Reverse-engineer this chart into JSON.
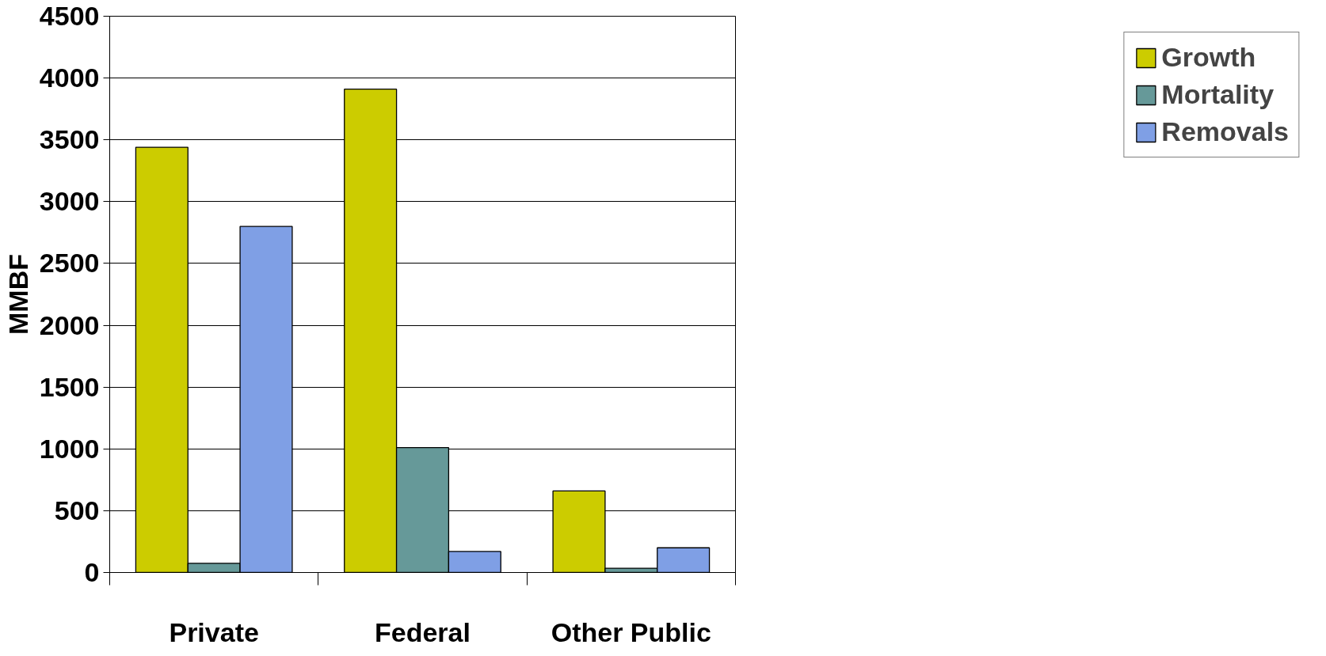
{
  "chart_data": {
    "type": "bar",
    "ylabel": "MMBF",
    "categories": [
      "Private",
      "Federal",
      "Other Public"
    ],
    "series": [
      {
        "name": "Growth",
        "color": "#cccc00",
        "values": [
          3440,
          3910,
          660
        ]
      },
      {
        "name": "Mortality",
        "color": "#669999",
        "values": [
          75,
          1010,
          35
        ]
      },
      {
        "name": "Removals",
        "color": "#7f9fe5",
        "values": [
          2800,
          170,
          200
        ]
      }
    ],
    "ylim": [
      0,
      4500
    ],
    "yticks": [
      0,
      500,
      1000,
      1500,
      2000,
      2500,
      3000,
      3500,
      4000,
      4500
    ],
    "grid": "y",
    "legend": "right"
  }
}
